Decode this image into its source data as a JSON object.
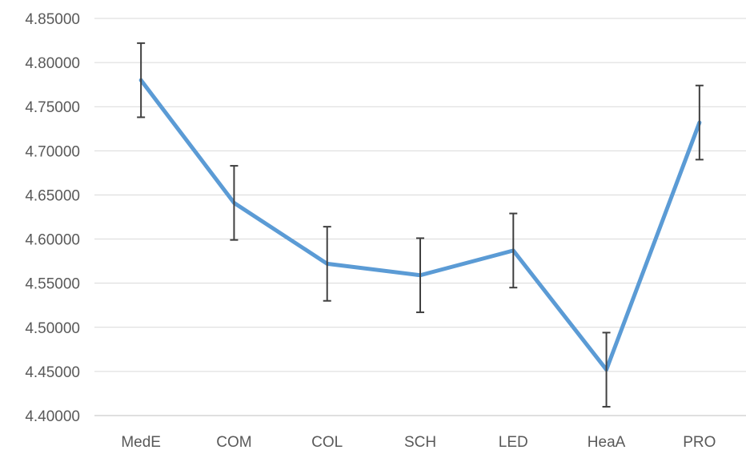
{
  "chart_data": {
    "type": "line",
    "title": "",
    "xlabel": "",
    "ylabel": "",
    "categories": [
      "MedE",
      "COM",
      "COL",
      "SCH",
      "LED",
      "HeaA",
      "PRO"
    ],
    "series": [
      {
        "values": [
          4.78,
          4.641,
          4.572,
          4.559,
          4.587,
          4.452,
          4.732
        ],
        "error_plus_minus": [
          0.042,
          0.042,
          0.042,
          0.042,
          0.042,
          0.042,
          0.042
        ],
        "color": "#5b9bd5"
      }
    ],
    "ylim": [
      4.4,
      4.85
    ],
    "y_ticks": [
      "4.40000",
      "4.45000",
      "4.50000",
      "4.55000",
      "4.60000",
      "4.65000",
      "4.70000",
      "4.75000",
      "4.80000",
      "4.85000"
    ],
    "grid": true,
    "legend": "none",
    "colors": {
      "grid": "#d9d9d9",
      "axis": "#bfbfbf",
      "error_bar": "#404040",
      "text": "#595959"
    }
  }
}
